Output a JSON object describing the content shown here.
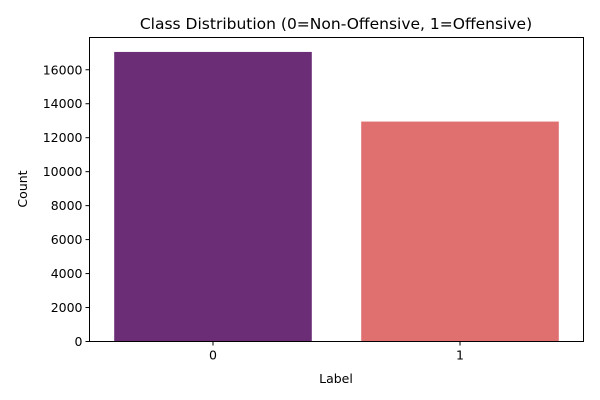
{
  "chart_data": {
    "type": "bar",
    "title": "Class Distribution (0=Non-Offensive, 1=Offensive)",
    "xlabel": "Label",
    "ylabel": "Count",
    "categories": [
      "0",
      "1"
    ],
    "values": [
      17050,
      12950
    ],
    "colors": [
      "#6b2d75",
      "#e07070"
    ],
    "ylim": [
      0,
      17900
    ],
    "yticks": [
      0,
      2000,
      4000,
      6000,
      8000,
      10000,
      12000,
      14000,
      16000
    ],
    "grid": false,
    "legend": "none"
  }
}
